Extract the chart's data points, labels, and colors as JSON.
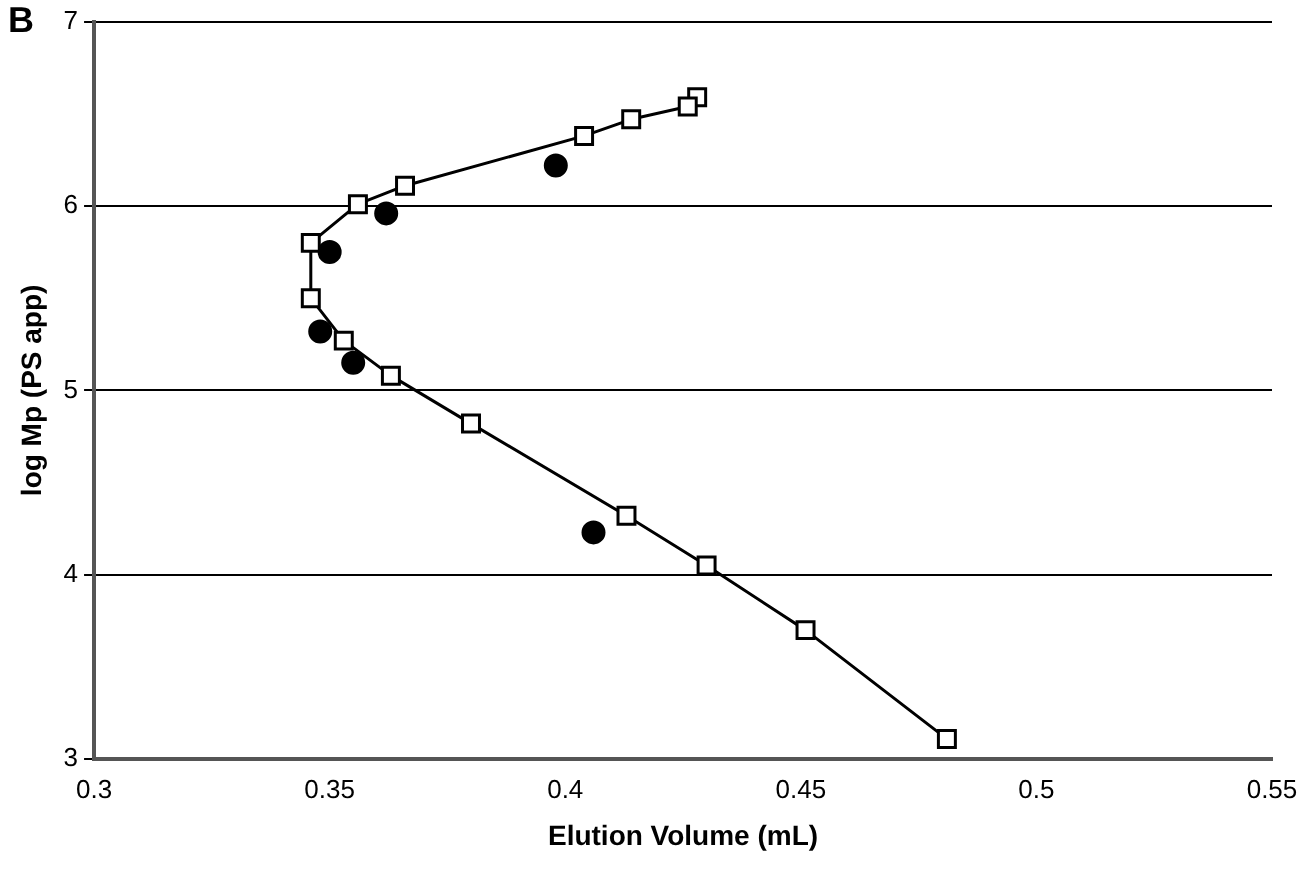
{
  "chart_data": {
    "type": "line",
    "xlabel": "Elution Volume (mL)",
    "ylabel": "log Mp (PS app)",
    "annotations": [
      "B"
    ],
    "xlim": [
      0.3,
      0.55
    ],
    "xticks": [
      0.3,
      0.35,
      0.4,
      0.45,
      0.5,
      0.55
    ],
    "ylim": [
      3,
      7
    ],
    "yticks": [
      3,
      4,
      5,
      6,
      7
    ],
    "grid": "y",
    "legend": false,
    "series": [
      {
        "type": "line",
        "marker": "square",
        "line_style": "solid",
        "color": "#000000",
        "x": [
          0.428,
          0.426,
          0.414,
          0.404,
          0.366,
          0.356,
          0.346,
          0.346,
          0.353,
          0.363,
          0.38,
          0.413,
          0.43,
          0.451,
          0.481
        ],
        "values": [
          6.59,
          6.54,
          6.47,
          6.38,
          6.11,
          6.01,
          5.8,
          5.5,
          5.27,
          5.08,
          4.82,
          4.32,
          4.05,
          3.7,
          3.11
        ]
      },
      {
        "type": "scatter",
        "marker": "circle",
        "color": "#000000",
        "x": [
          0.398,
          0.362,
          0.35,
          0.348,
          0.355,
          0.406
        ],
        "values": [
          6.22,
          5.96,
          5.75,
          5.32,
          5.15,
          4.23
        ]
      }
    ]
  }
}
